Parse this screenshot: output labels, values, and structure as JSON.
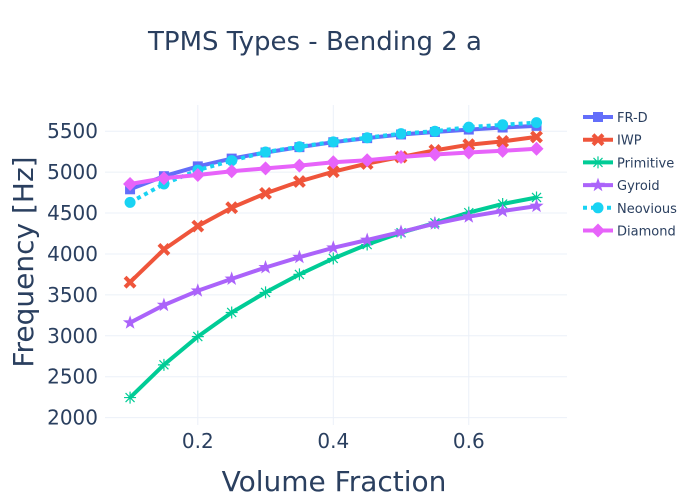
{
  "chart_data": {
    "type": "line",
    "title": "TPMS Types - Bending 2 a",
    "xlabel": "Volume Fraction",
    "ylabel": "Frequency [Hz]",
    "xlim": [
      0.063,
      0.745
    ],
    "ylim": [
      1910,
      5820
    ],
    "xticks": [
      0.2,
      0.4,
      0.6
    ],
    "xtick_labels": [
      "0.2",
      "0.4",
      "0.6"
    ],
    "yticks": [
      2000,
      2500,
      3000,
      3500,
      4000,
      4500,
      5000,
      5500
    ],
    "ytick_labels": [
      "2000",
      "2500",
      "3000",
      "3500",
      "4000",
      "4500",
      "5000",
      "5500"
    ],
    "grid": true,
    "legend_position": "right",
    "x": [
      0.1,
      0.15,
      0.2,
      0.25,
      0.3,
      0.35,
      0.4,
      0.45,
      0.5,
      0.55,
      0.6,
      0.65,
      0.7
    ],
    "series": [
      {
        "name": "FR-D",
        "color": "#636efa",
        "marker": "square",
        "dash": "solid",
        "values": [
          4790,
          4950,
          5070,
          5165,
          5240,
          5305,
          5365,
          5415,
          5460,
          5490,
          5520,
          5545,
          5565
        ]
      },
      {
        "name": "IWP",
        "color": "#ef553b",
        "marker": "x",
        "dash": "solid",
        "values": [
          3655,
          4055,
          4340,
          4565,
          4740,
          4885,
          5005,
          5105,
          5185,
          5265,
          5335,
          5375,
          5430
        ]
      },
      {
        "name": "Primitive",
        "color": "#00cc96",
        "marker": "asterisk",
        "dash": "solid",
        "values": [
          2245,
          2645,
          2990,
          3285,
          3530,
          3750,
          3945,
          4115,
          4260,
          4380,
          4505,
          4610,
          4690
        ]
      },
      {
        "name": "Gyroid",
        "color": "#ab63fa",
        "marker": "star",
        "dash": "solid",
        "values": [
          3160,
          3375,
          3550,
          3695,
          3835,
          3960,
          4075,
          4170,
          4270,
          4370,
          4455,
          4525,
          4585
        ]
      },
      {
        "name": "Neovious",
        "color": "#19d3f3",
        "marker": "circle",
        "dash": "dot",
        "values": [
          4630,
          4855,
          5025,
          5140,
          5245,
          5310,
          5370,
          5420,
          5470,
          5500,
          5550,
          5578,
          5605
        ]
      },
      {
        "name": "Diamond",
        "color": "#e763fa",
        "marker": "diamond",
        "dash": "solid",
        "values": [
          4855,
          4925,
          4965,
          5010,
          5045,
          5080,
          5120,
          5145,
          5185,
          5215,
          5240,
          5260,
          5285
        ]
      }
    ]
  }
}
